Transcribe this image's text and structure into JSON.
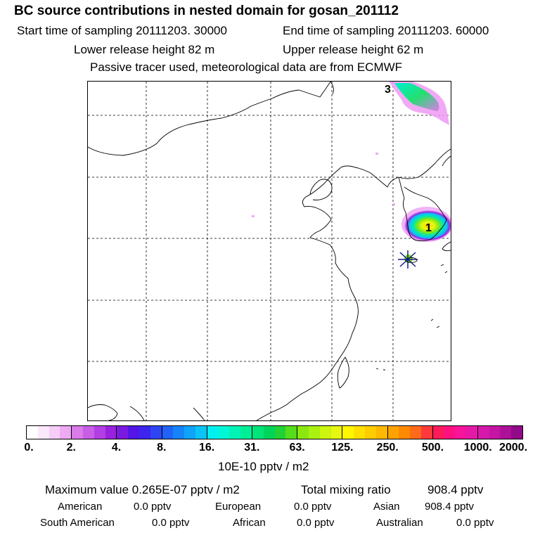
{
  "header": {
    "title": "BC  source contributions in nested domain for gosan_201112",
    "start_time": "Start time of sampling 20111203. 30000",
    "end_time": "End time of sampling 20111203. 60000",
    "lower_release": "Lower release height   82 m",
    "upper_release": "Upper release height   62 m",
    "tracer_note": "Passive tracer used, meteorological data are from ECMWF"
  },
  "map": {
    "labels": {
      "top_marker": "3",
      "peak_marker": "1"
    },
    "colors": {
      "coast": "#000000",
      "grid": "#000000",
      "receptor": "#1a1a8a"
    }
  },
  "colorbar": {
    "ticks": [
      "0.",
      "2.",
      "4.",
      "8.",
      "16.",
      "31.",
      "63.",
      "125.",
      "250.",
      "500.",
      "1000.",
      "2000."
    ],
    "segments": [
      [
        "#ffffff",
        "#fbe8fb",
        "#f6ccf8",
        "#eeaaf3"
      ],
      [
        "#d97be9",
        "#c95de6",
        "#b33ee3",
        "#9a21de"
      ],
      [
        "#7a1ae0",
        "#5316e6",
        "#3d25ee",
        "#2d45f3"
      ],
      [
        "#2063f6",
        "#1683f8",
        "#0ea4fa",
        "#0cc3f7"
      ],
      [
        "#00f0f0",
        "#00f7d6",
        "#00f3b4",
        "#00ee98"
      ],
      [
        "#00e57a",
        "#00d55a",
        "#22d234",
        "#55dc1a"
      ],
      [
        "#8ae810",
        "#aaf010",
        "#ccf510",
        "#e7f710"
      ],
      [
        "#fff600",
        "#ffe000",
        "#ffcc00",
        "#ffb700"
      ],
      [
        "#ffa200",
        "#ff8a00",
        "#ff6a1a",
        "#ff3a3a"
      ],
      [
        "#ff1a5a",
        "#ff1080",
        "#f5149a",
        "#e618a8"
      ],
      [
        "#d619aa",
        "#c515a4",
        "#ae1098",
        "#92098a"
      ]
    ],
    "units": "10E-10 pptv / m2"
  },
  "stats": {
    "maximum": "Maximum value  0.265E-07 pptv / m2",
    "total": "Total mixing ratio",
    "total_value": "908.4 pptv",
    "american_label": "American",
    "american_value": "0.0 pptv",
    "european_label": "European",
    "european_value": "0.0 pptv",
    "asian_label": "Asian",
    "asian_value": "908.4 pptv",
    "south_american_label": "South American",
    "south_american_value": "0.0 pptv",
    "african_label": "African",
    "african_value": "0.0 pptv",
    "australian_label": "Australian",
    "australian_value": "0.0 pptv"
  }
}
